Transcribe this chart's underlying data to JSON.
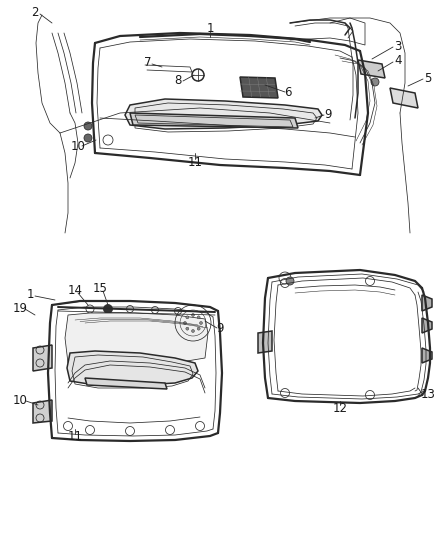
{
  "background_color": "#ffffff",
  "line_color": "#2a2a2a",
  "label_color": "#1a1a1a",
  "font_size": 8.5,
  "lw_main": 1.1,
  "lw_thin": 0.55,
  "lw_thick": 1.6
}
